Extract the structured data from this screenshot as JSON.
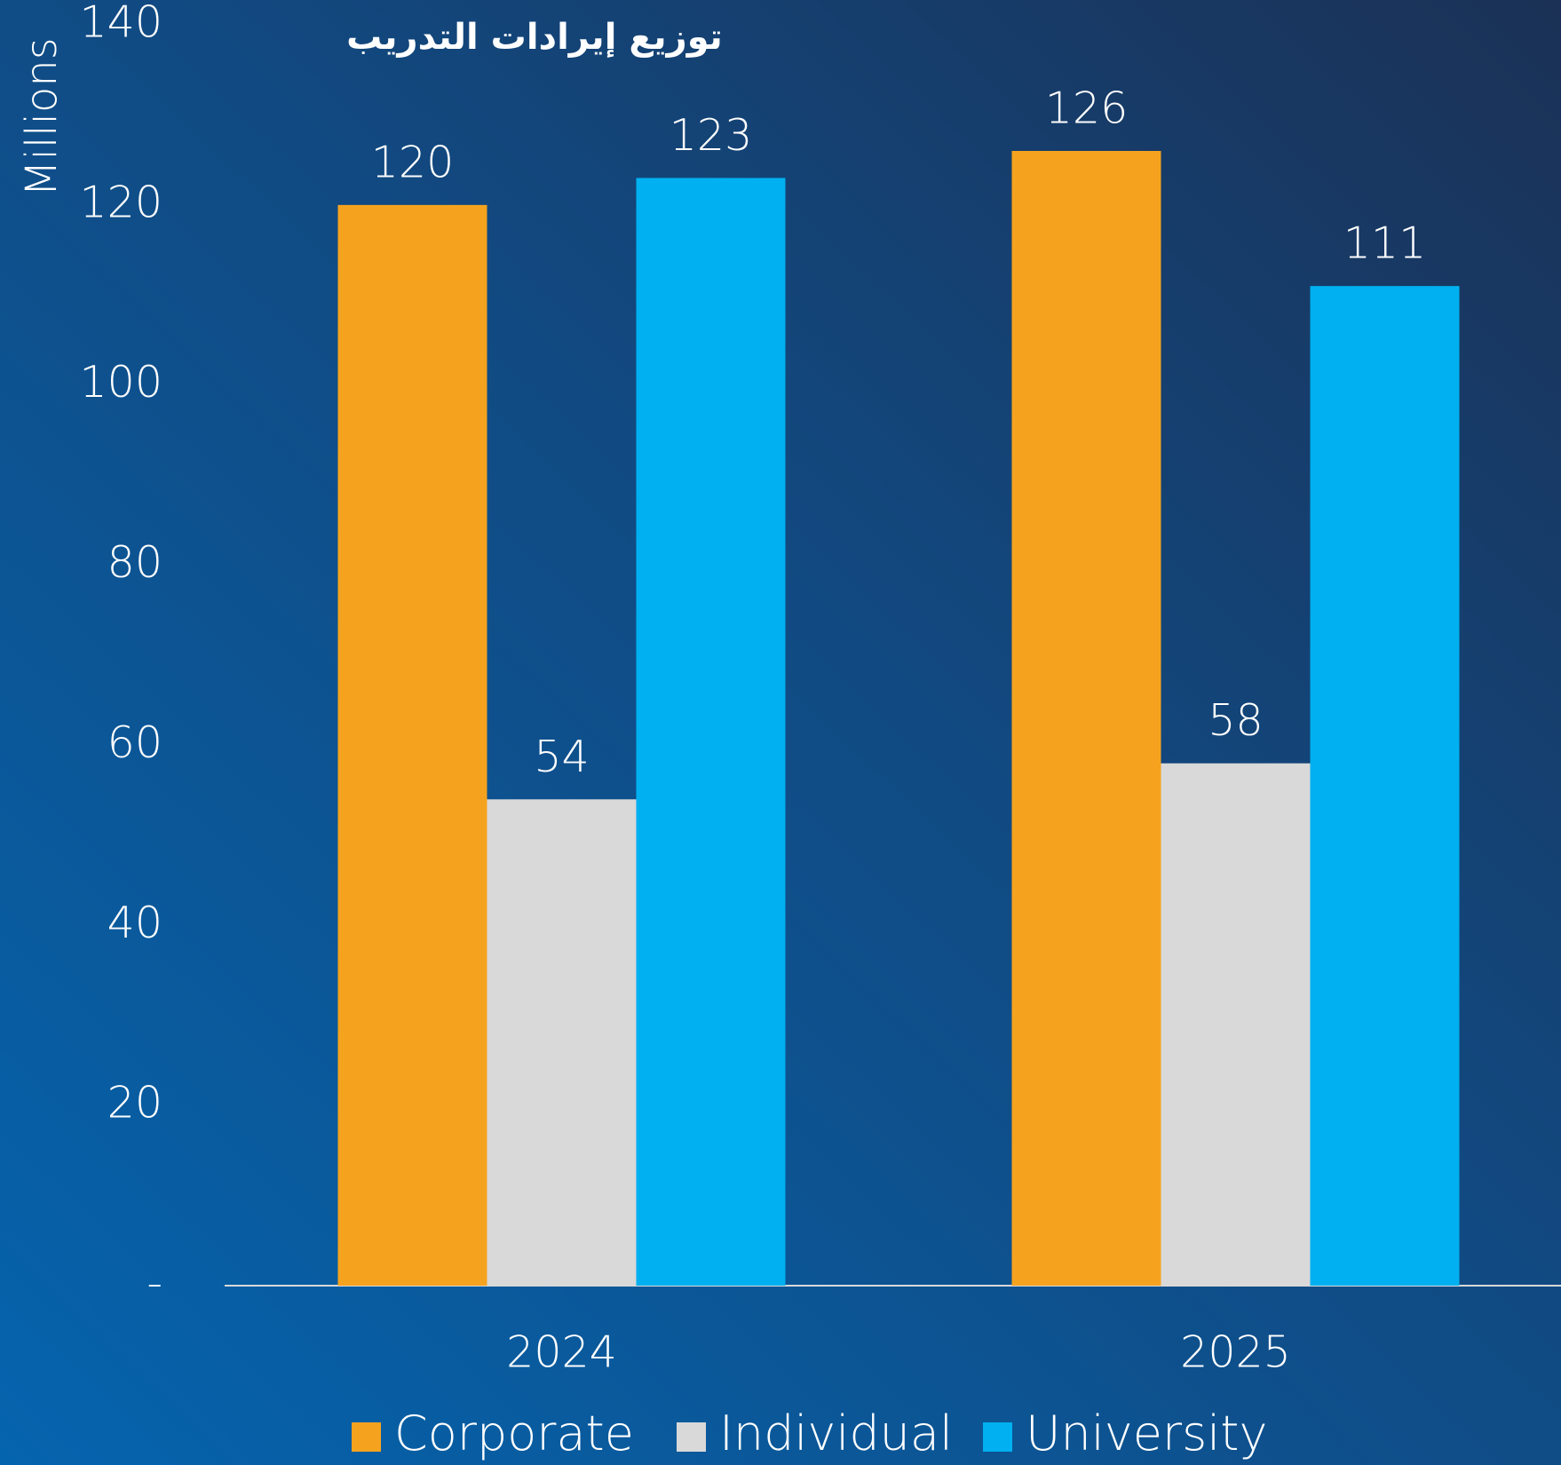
{
  "chart_data": {
    "type": "bar",
    "title": "توزيع إيرادات التدريب",
    "y_label": "Millions",
    "categories": [
      "2024",
      "2025"
    ],
    "series": [
      {
        "name": "Corporate",
        "color": "#f5a31f",
        "values": [
          120,
          126
        ]
      },
      {
        "name": "Individual",
        "color": "#d9d9d9",
        "values": [
          54,
          58
        ]
      },
      {
        "name": "University",
        "color": "#00b0f0",
        "values": [
          123,
          111
        ]
      }
    ],
    "ylim": [
      0,
      140
    ],
    "yticks": [
      {
        "value": 0,
        "label": "-"
      },
      20,
      40,
      60,
      80,
      100,
      120,
      140
    ],
    "grid": false,
    "legend": "bottom"
  }
}
